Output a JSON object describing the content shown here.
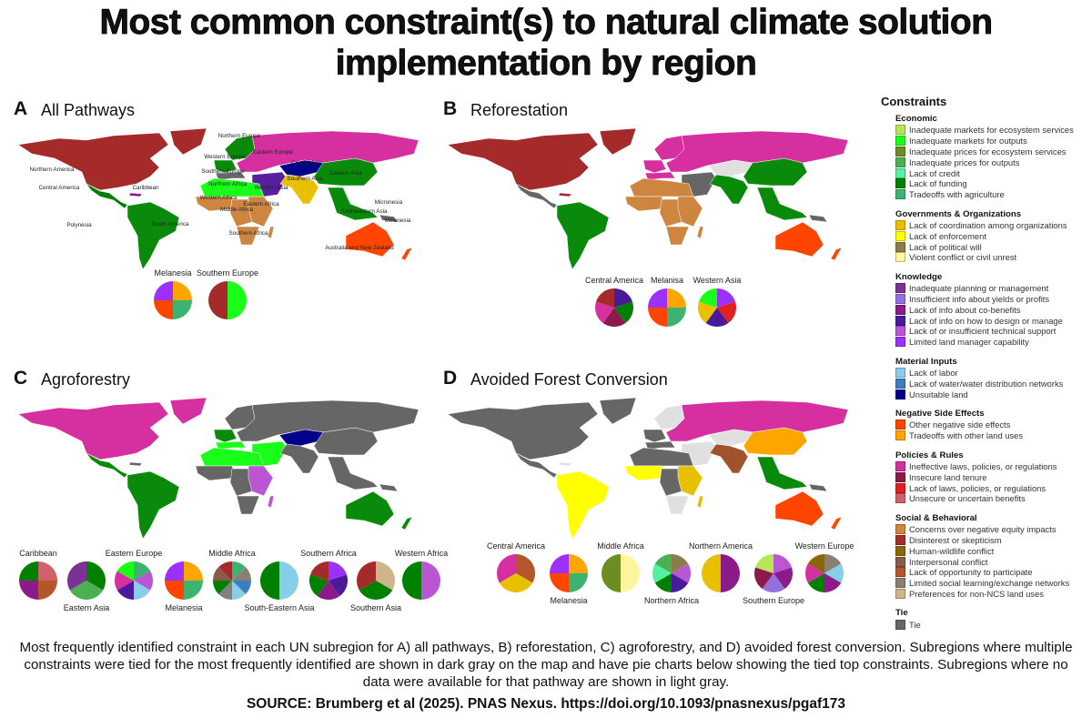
{
  "title_line1": "Most common constraint(s) to natural climate solution",
  "title_line2": "implementation by region",
  "panels": [
    {
      "letter": "A",
      "title": "All Pathways",
      "regions": {
        "Northern America": "#a52a2a",
        "Greenland": "#a52a2a",
        "Central America": "#008000",
        "Caribbean": "#8b1a8b",
        "South America": "#0a8a0a",
        "Northern Europe": "#0a8a0a",
        "Western Europe": "#0a8a0a",
        "Southern Europe": "#666666",
        "Eastern Europe": "#d62fa0",
        "Central Asia": "#00008b",
        "Western Asia": "#5a1fa0",
        "Southern Asia": "#e8c000",
        "Eastern Asia": "#0a8a0a",
        "South-Eastern Asia": "#0a8a0a",
        "Northern Africa": "#1aff1a",
        "Western Africa": "#cd853f",
        "Middle Africa": "#cd853f",
        "Eastern Africa": "#cd853f",
        "Southern Africa": "#cd853f",
        "Madagascar": "#cd853f",
        "Australia": "#ff4500",
        "New Zealand": "#ff4500",
        "Melanesia": "#666666"
      },
      "map_labels": [
        "Northern Europe",
        "Western Europe",
        "Southern Europe",
        "Eastern Europe",
        "Central Asia",
        "Northern America",
        "Eastern Asia",
        "Southern Asia",
        "Central America",
        "Caribbean",
        "Northern Africa",
        "Western Asia",
        "Western Africa",
        "Middle Africa",
        "Eastern Africa",
        "Micronesia",
        "Southeastern Asia",
        "Melanesia",
        "Polynesia",
        "South America",
        "Southern Africa",
        "Australia and New Zealand"
      ],
      "pies": [
        {
          "label": "Melanesia",
          "slices": [
            "#ffa500",
            "#3cb371",
            "#ff4500",
            "#9b30ff"
          ]
        },
        {
          "label": "Southern Europe",
          "slices": [
            "#1aff1a",
            "#a52a2a"
          ]
        }
      ]
    },
    {
      "letter": "B",
      "title": "Reforestation",
      "regions": {
        "Northern America": "#a52a2a",
        "Greenland": "#a52a2a",
        "Central America": "#666666",
        "Caribbean": "#a52a2a",
        "South America": "#0a8a0a",
        "Northern Europe": "#d62fa0",
        "Western Europe": "#d62fa0",
        "Southern Europe": "#d62fa0",
        "Eastern Europe": "#d62fa0",
        "Central Asia": "#e0e0e0",
        "Western Asia": "#666666",
        "Southern Asia": "#0a8a0a",
        "Eastern Asia": "#0a8a0a",
        "South-Eastern Asia": "#0a8a0a",
        "Northern Africa": "#cd853f",
        "Western Africa": "#cd853f",
        "Middle Africa": "#cd853f",
        "Eastern Africa": "#cd853f",
        "Southern Africa": "#cd853f",
        "Madagascar": "#cd853f",
        "Australia": "#ff4500",
        "New Zealand": "#ff4500",
        "Melanesia": "#666666"
      },
      "pies": [
        {
          "label": "Central America",
          "slices": [
            "#4b1a9b",
            "#008000",
            "#8b1a4a",
            "#d62fa0",
            "#a52a2a"
          ]
        },
        {
          "label": "Melanisa",
          "slices": [
            "#ffa500",
            "#3cb371",
            "#ff4500",
            "#9b30ff"
          ]
        },
        {
          "label": "Western Asia",
          "slices": [
            "#9b30ff",
            "#e32020",
            "#4b1a9b",
            "#e8c000",
            "#1aff1a"
          ]
        }
      ]
    },
    {
      "letter": "C",
      "title": "Agroforestry",
      "regions": {
        "Northern America": "#d62fa0",
        "Greenland": "#d62fa0",
        "Central America": "#0a8a0a",
        "Caribbean": "#666666",
        "South America": "#0a8a0a",
        "Northern Europe": "#666666",
        "Western Europe": "#0a8a0a",
        "Southern Europe": "#1aff1a",
        "Eastern Europe": "#666666",
        "Central Asia": "#00008b",
        "Western Asia": "#1aff1a",
        "Southern Asia": "#666666",
        "Eastern Asia": "#666666",
        "South-Eastern Asia": "#666666",
        "Northern Africa": "#1aff1a",
        "Western Africa": "#666666",
        "Middle Africa": "#666666",
        "Eastern Africa": "#ba55d3",
        "Southern Africa": "#666666",
        "Madagascar": "#ba55d3",
        "Australia": "#0a8a0a",
        "New Zealand": "#0a8a0a",
        "Melanesia": "#666666"
      },
      "pies": [
        {
          "label": "Caribbean",
          "slices": [
            "#d0606a",
            "#b5562a",
            "#8b1a8b",
            "#008000"
          ]
        },
        {
          "label": "Eastern Asia",
          "slices": [
            "#008000",
            "#4caf50",
            "#7b3294"
          ]
        },
        {
          "label": "Eastern Europe",
          "slices": [
            "#3cb371",
            "#ba55d3",
            "#87ceeb",
            "#4b1a9b",
            "#d62fa0",
            "#1aff1a"
          ]
        },
        {
          "label": "Melanesia",
          "slices": [
            "#ffa500",
            "#3cb371",
            "#ff4500",
            "#9b30ff"
          ]
        },
        {
          "label": "Middle Africa",
          "slices": [
            "#3cb371",
            "#8b8070",
            "#3a80c0",
            "#87ceeb",
            "#808080",
            "#008000",
            "#8b5a4a",
            "#a52a2a"
          ]
        },
        {
          "label": "South-Eastern Asia",
          "slices": [
            "#87ceeb",
            "#008000"
          ]
        },
        {
          "label": "Southern Africa",
          "slices": [
            "#9b30ff",
            "#4b1a9b",
            "#8b1a8b",
            "#008000",
            "#a52a2a"
          ]
        },
        {
          "label": "Southern Asia",
          "slices": [
            "#d2b48c",
            "#008000",
            "#a52a2a"
          ]
        },
        {
          "label": "Western Africa",
          "slices": [
            "#ba55d3",
            "#008000"
          ]
        }
      ]
    },
    {
      "letter": "D",
      "title": "Avoided Forest Conversion",
      "regions": {
        "Northern America": "#666666",
        "Greenland": "#666666",
        "Central America": "#666666",
        "Caribbean": "#e0e0e0",
        "South America": "#ffff00",
        "Northern Europe": "#e0e0e0",
        "Western Europe": "#666666",
        "Southern Europe": "#666666",
        "Eastern Europe": "#d62fa0",
        "Central Asia": "#e0e0e0",
        "Western Asia": "#e0e0e0",
        "Southern Asia": "#a0522d",
        "Eastern Asia": "#ffa500",
        "South-Eastern Asia": "#0a8a0a",
        "Northern Africa": "#666666",
        "Western Africa": "#ffff00",
        "Middle Africa": "#666666",
        "Eastern Africa": "#e8c000",
        "Southern Africa": "#e0e0e0",
        "Madagascar": "#e8c000",
        "Australia": "#ff4500",
        "New Zealand": "#ff4500",
        "Melanesia": "#666666"
      },
      "pies": [
        {
          "label": "Central America",
          "slices": [
            "#b5562a",
            "#e8c000",
            "#d62fa0"
          ]
        },
        {
          "label": "Melanesia",
          "slices": [
            "#ffa500",
            "#3cb371",
            "#ff4500",
            "#9b30ff"
          ]
        },
        {
          "label": "Middle Africa",
          "slices": [
            "#fff59d",
            "#6b8e23"
          ]
        },
        {
          "label": "Northern Africa",
          "slices": [
            "#8b7d4a",
            "#ba55d3",
            "#4b1a9b",
            "#008000",
            "#55f0a0",
            "#4caf50"
          ]
        },
        {
          "label": "Northern America",
          "slices": [
            "#8b1a8b",
            "#e8c000"
          ]
        },
        {
          "label": "Southern Europe",
          "slices": [
            "#ba55d3",
            "#8b1a8b",
            "#9370db",
            "#8b1a4a",
            "#b5e655"
          ]
        },
        {
          "label": "Western Europe",
          "slices": [
            "#8b8070",
            "#87ceeb",
            "#8b1a8b",
            "#008000",
            "#d62fa0",
            "#8b6508"
          ]
        }
      ]
    }
  ],
  "legend": {
    "title": "Constraints",
    "groups": [
      {
        "name": "Economic",
        "items": [
          {
            "label": "Inadequate markets for ecosystem services",
            "color": "#b5e655"
          },
          {
            "label": "Inadequate markets for outputs",
            "color": "#1aff1a"
          },
          {
            "label": "Inadequate prices for ecosystem services",
            "color": "#6b8e23"
          },
          {
            "label": "Inadequate prices for outputs",
            "color": "#4caf50"
          },
          {
            "label": "Lack of credit",
            "color": "#55f0a0"
          },
          {
            "label": "Lack of funding",
            "color": "#008000"
          },
          {
            "label": "Tradeoffs with agriculture",
            "color": "#3cb371"
          }
        ]
      },
      {
        "name": "Governments & Organizations",
        "items": [
          {
            "label": "Lack of coordination among organizations",
            "color": "#e8c000"
          },
          {
            "label": "Lack of enforcement",
            "color": "#ffff00"
          },
          {
            "label": "Lack of political will",
            "color": "#8b7d4a"
          },
          {
            "label": "Violent conflict or civil unrest",
            "color": "#fff59d"
          }
        ]
      },
      {
        "name": "Knowledge",
        "items": [
          {
            "label": "Inadequate planning or management",
            "color": "#7b3294"
          },
          {
            "label": "Insufficient info about yields or profits",
            "color": "#9370db"
          },
          {
            "label": "Lack of info about co-benefits",
            "color": "#8b1a8b"
          },
          {
            "label": "Lack of info on how to design or manage",
            "color": "#4b1a9b"
          },
          {
            "label": "Lack of or insufficient technical support",
            "color": "#ba55d3"
          },
          {
            "label": "Limited land manager capability",
            "color": "#9b30ff"
          }
        ]
      },
      {
        "name": "Material Inputs",
        "items": [
          {
            "label": "Lack of labor",
            "color": "#87ceeb"
          },
          {
            "label": "Lack of water/water distribution networks",
            "color": "#3a80c0"
          },
          {
            "label": "Unsuitable land",
            "color": "#00008b"
          }
        ]
      },
      {
        "name": "Negative Side Effects",
        "items": [
          {
            "label": "Other negative side effects",
            "color": "#ff4500"
          },
          {
            "label": "Tradeoffs with other land uses",
            "color": "#ffa500"
          }
        ]
      },
      {
        "name": "Policies & Rules",
        "items": [
          {
            "label": "Ineffective laws, policies, or regulations",
            "color": "#d62fa0"
          },
          {
            "label": "Insecure land tenure",
            "color": "#8b1a4a"
          },
          {
            "label": "Lack of laws, policies, or regulations",
            "color": "#e32020"
          },
          {
            "label": "Unsecure or uncertain benefits",
            "color": "#d0606a"
          }
        ]
      },
      {
        "name": "Social & Behavioral",
        "items": [
          {
            "label": "Concerns over negative equity impacts",
            "color": "#cd853f"
          },
          {
            "label": "Disinterest or skepticism",
            "color": "#a52a2a"
          },
          {
            "label": "Human-wildlife conflict",
            "color": "#8b6508"
          },
          {
            "label": "Interpersonal conflict",
            "color": "#8b5a4a"
          },
          {
            "label": "Lack of opportunity to participate",
            "color": "#b5562a"
          },
          {
            "label": "Limited social learning/exchange networks",
            "color": "#8b8070"
          },
          {
            "label": "Preferences for non-NCS land uses",
            "color": "#d2b48c"
          }
        ]
      },
      {
        "name": "Tie",
        "items": [
          {
            "label": "Tie",
            "color": "#666666"
          }
        ]
      }
    ]
  },
  "no_data_color": "#e0e0e0",
  "caption": "Most frequently identified constraint in each UN subregion for A) all pathways, B) reforestation, C) agroforestry, and D) avoided forest conversion. Subregions where multiple constraints were tied for the most frequently identified are shown in dark gray on the map and have pie charts below showing the tied top constraints. Subregions where no data were available for that pathway are shown in light gray.",
  "source": "SOURCE: Brumberg et al (2025). PNAS Nexus. https://doi.org/10.1093/pnasnexus/pgaf173"
}
